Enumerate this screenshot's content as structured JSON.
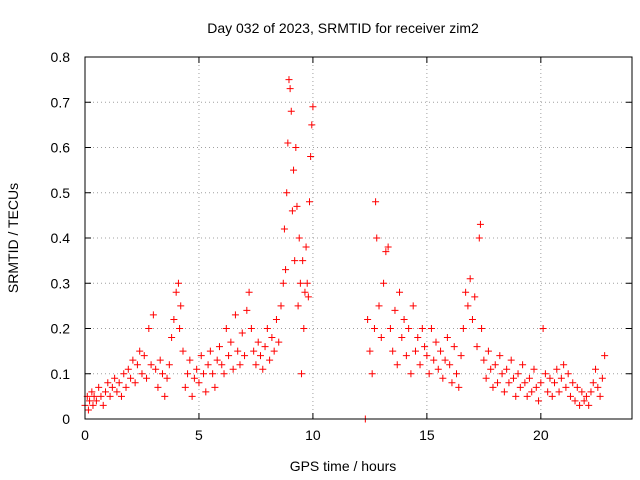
{
  "chart_data": {
    "type": "scatter",
    "title": "Day 032 of 2023, SRMTID for receiver zim2",
    "xlabel": "GPS time / hours",
    "ylabel": "SRMTID / TECUs",
    "xlim": [
      0,
      24
    ],
    "ylim": [
      0,
      0.8
    ],
    "xticks": [
      0,
      5,
      10,
      15,
      20
    ],
    "yticks": [
      0,
      0.1,
      0.2,
      0.3,
      0.4,
      0.5,
      0.6,
      0.7,
      0.8
    ],
    "xtick_labels": [
      "0",
      "5",
      "10",
      "15",
      "20"
    ],
    "ytick_labels": [
      "0",
      "0.1",
      "0.2",
      "0.3",
      "0.4",
      "0.5",
      "0.6",
      "0.7",
      "0.8"
    ],
    "grid": true,
    "marker": "plus",
    "color": "#ff0000",
    "series": [
      {
        "name": "SRMTID",
        "points": [
          [
            0.0,
            0.03
          ],
          [
            0.1,
            0.05
          ],
          [
            0.15,
            0.02
          ],
          [
            0.2,
            0.04
          ],
          [
            0.3,
            0.06
          ],
          [
            0.35,
            0.03
          ],
          [
            0.4,
            0.05
          ],
          [
            0.5,
            0.04
          ],
          [
            0.6,
            0.07
          ],
          [
            0.7,
            0.05
          ],
          [
            0.8,
            0.03
          ],
          [
            0.9,
            0.06
          ],
          [
            1.0,
            0.08
          ],
          [
            1.1,
            0.05
          ],
          [
            1.2,
            0.07
          ],
          [
            1.3,
            0.09
          ],
          [
            1.4,
            0.06
          ],
          [
            1.5,
            0.08
          ],
          [
            1.6,
            0.05
          ],
          [
            1.7,
            0.1
          ],
          [
            1.8,
            0.07
          ],
          [
            1.9,
            0.11
          ],
          [
            2.0,
            0.09
          ],
          [
            2.1,
            0.13
          ],
          [
            2.2,
            0.08
          ],
          [
            2.3,
            0.12
          ],
          [
            2.4,
            0.15
          ],
          [
            2.5,
            0.1
          ],
          [
            2.6,
            0.14
          ],
          [
            2.7,
            0.09
          ],
          [
            2.8,
            0.2
          ],
          [
            2.9,
            0.12
          ],
          [
            3.0,
            0.23
          ],
          [
            3.1,
            0.11
          ],
          [
            3.2,
            0.07
          ],
          [
            3.3,
            0.13
          ],
          [
            3.4,
            0.1
          ],
          [
            3.5,
            0.05
          ],
          [
            3.6,
            0.09
          ],
          [
            3.7,
            0.12
          ],
          [
            3.8,
            0.18
          ],
          [
            3.9,
            0.22
          ],
          [
            4.0,
            0.28
          ],
          [
            4.1,
            0.3
          ],
          [
            4.15,
            0.2
          ],
          [
            4.2,
            0.25
          ],
          [
            4.3,
            0.15
          ],
          [
            4.4,
            0.07
          ],
          [
            4.5,
            0.1
          ],
          [
            4.6,
            0.13
          ],
          [
            4.7,
            0.05
          ],
          [
            4.8,
            0.09
          ],
          [
            4.9,
            0.11
          ],
          [
            5.0,
            0.08
          ],
          [
            5.1,
            0.14
          ],
          [
            5.2,
            0.1
          ],
          [
            5.3,
            0.06
          ],
          [
            5.4,
            0.12
          ],
          [
            5.5,
            0.15
          ],
          [
            5.6,
            0.1
          ],
          [
            5.7,
            0.07
          ],
          [
            5.8,
            0.13
          ],
          [
            5.9,
            0.16
          ],
          [
            6.0,
            0.12
          ],
          [
            6.1,
            0.1
          ],
          [
            6.2,
            0.2
          ],
          [
            6.3,
            0.14
          ],
          [
            6.4,
            0.17
          ],
          [
            6.5,
            0.11
          ],
          [
            6.6,
            0.23
          ],
          [
            6.7,
            0.15
          ],
          [
            6.8,
            0.12
          ],
          [
            6.9,
            0.19
          ],
          [
            7.0,
            0.14
          ],
          [
            7.1,
            0.24
          ],
          [
            7.2,
            0.28
          ],
          [
            7.3,
            0.2
          ],
          [
            7.4,
            0.15
          ],
          [
            7.5,
            0.12
          ],
          [
            7.6,
            0.17
          ],
          [
            7.7,
            0.14
          ],
          [
            7.8,
            0.11
          ],
          [
            7.9,
            0.16
          ],
          [
            8.0,
            0.2
          ],
          [
            8.1,
            0.13
          ],
          [
            8.2,
            0.18
          ],
          [
            8.3,
            0.15
          ],
          [
            8.4,
            0.22
          ],
          [
            8.5,
            0.17
          ],
          [
            8.6,
            0.25
          ],
          [
            8.7,
            0.3
          ],
          [
            8.75,
            0.42
          ],
          [
            8.8,
            0.33
          ],
          [
            8.85,
            0.5
          ],
          [
            8.9,
            0.61
          ],
          [
            8.95,
            0.75
          ],
          [
            9.0,
            0.73
          ],
          [
            9.05,
            0.68
          ],
          [
            9.1,
            0.46
          ],
          [
            9.15,
            0.55
          ],
          [
            9.2,
            0.35
          ],
          [
            9.25,
            0.6
          ],
          [
            9.3,
            0.47
          ],
          [
            9.35,
            0.25
          ],
          [
            9.4,
            0.4
          ],
          [
            9.45,
            0.3
          ],
          [
            9.5,
            0.1
          ],
          [
            9.55,
            0.35
          ],
          [
            9.6,
            0.2
          ],
          [
            9.65,
            0.28
          ],
          [
            9.7,
            0.38
          ],
          [
            9.75,
            0.3
          ],
          [
            9.8,
            0.27
          ],
          [
            9.85,
            0.48
          ],
          [
            9.9,
            0.58
          ],
          [
            9.95,
            0.65
          ],
          [
            10.0,
            0.69
          ],
          [
            12.3,
            0.0
          ],
          [
            12.4,
            0.22
          ],
          [
            12.5,
            0.15
          ],
          [
            12.6,
            0.1
          ],
          [
            12.7,
            0.2
          ],
          [
            12.75,
            0.48
          ],
          [
            12.8,
            0.4
          ],
          [
            12.9,
            0.25
          ],
          [
            13.0,
            0.18
          ],
          [
            13.1,
            0.3
          ],
          [
            13.2,
            0.37
          ],
          [
            13.3,
            0.38
          ],
          [
            13.4,
            0.2
          ],
          [
            13.5,
            0.15
          ],
          [
            13.6,
            0.24
          ],
          [
            13.7,
            0.12
          ],
          [
            13.8,
            0.28
          ],
          [
            13.9,
            0.18
          ],
          [
            14.0,
            0.22
          ],
          [
            14.1,
            0.14
          ],
          [
            14.2,
            0.2
          ],
          [
            14.3,
            0.1
          ],
          [
            14.4,
            0.25
          ],
          [
            14.5,
            0.15
          ],
          [
            14.6,
            0.18
          ],
          [
            14.7,
            0.12
          ],
          [
            14.8,
            0.2
          ],
          [
            14.9,
            0.16
          ],
          [
            15.0,
            0.14
          ],
          [
            15.1,
            0.1
          ],
          [
            15.2,
            0.2
          ],
          [
            15.3,
            0.13
          ],
          [
            15.4,
            0.17
          ],
          [
            15.5,
            0.11
          ],
          [
            15.6,
            0.15
          ],
          [
            15.7,
            0.09
          ],
          [
            15.8,
            0.13
          ],
          [
            15.9,
            0.18
          ],
          [
            16.0,
            0.12
          ],
          [
            16.1,
            0.08
          ],
          [
            16.2,
            0.16
          ],
          [
            16.3,
            0.1
          ],
          [
            16.4,
            0.07
          ],
          [
            16.5,
            0.14
          ],
          [
            16.6,
            0.2
          ],
          [
            16.7,
            0.28
          ],
          [
            16.8,
            0.25
          ],
          [
            16.9,
            0.31
          ],
          [
            17.0,
            0.22
          ],
          [
            17.1,
            0.27
          ],
          [
            17.2,
            0.16
          ],
          [
            17.3,
            0.4
          ],
          [
            17.35,
            0.43
          ],
          [
            17.4,
            0.2
          ],
          [
            17.5,
            0.13
          ],
          [
            17.6,
            0.09
          ],
          [
            17.7,
            0.15
          ],
          [
            17.8,
            0.11
          ],
          [
            17.9,
            0.07
          ],
          [
            18.0,
            0.12
          ],
          [
            18.1,
            0.08
          ],
          [
            18.2,
            0.14
          ],
          [
            18.3,
            0.1
          ],
          [
            18.4,
            0.06
          ],
          [
            18.5,
            0.11
          ],
          [
            18.6,
            0.08
          ],
          [
            18.7,
            0.13
          ],
          [
            18.8,
            0.09
          ],
          [
            18.9,
            0.05
          ],
          [
            19.0,
            0.1
          ],
          [
            19.1,
            0.07
          ],
          [
            19.2,
            0.12
          ],
          [
            19.3,
            0.08
          ],
          [
            19.4,
            0.05
          ],
          [
            19.5,
            0.09
          ],
          [
            19.6,
            0.06
          ],
          [
            19.7,
            0.11
          ],
          [
            19.8,
            0.07
          ],
          [
            19.9,
            0.04
          ],
          [
            20.0,
            0.08
          ],
          [
            20.1,
            0.2
          ],
          [
            20.2,
            0.1
          ],
          [
            20.3,
            0.06
          ],
          [
            20.4,
            0.09
          ],
          [
            20.5,
            0.05
          ],
          [
            20.6,
            0.08
          ],
          [
            20.7,
            0.11
          ],
          [
            20.8,
            0.06
          ],
          [
            20.9,
            0.09
          ],
          [
            21.0,
            0.12
          ],
          [
            21.1,
            0.07
          ],
          [
            21.2,
            0.1
          ],
          [
            21.3,
            0.05
          ],
          [
            21.4,
            0.08
          ],
          [
            21.5,
            0.04
          ],
          [
            21.6,
            0.07
          ],
          [
            21.7,
            0.03
          ],
          [
            21.8,
            0.06
          ],
          [
            21.9,
            0.04
          ],
          [
            22.0,
            0.05
          ],
          [
            22.1,
            0.03
          ],
          [
            22.2,
            0.06
          ],
          [
            22.3,
            0.08
          ],
          [
            22.4,
            0.11
          ],
          [
            22.5,
            0.07
          ],
          [
            22.6,
            0.05
          ],
          [
            22.7,
            0.09
          ],
          [
            22.8,
            0.14
          ]
        ]
      }
    ]
  }
}
